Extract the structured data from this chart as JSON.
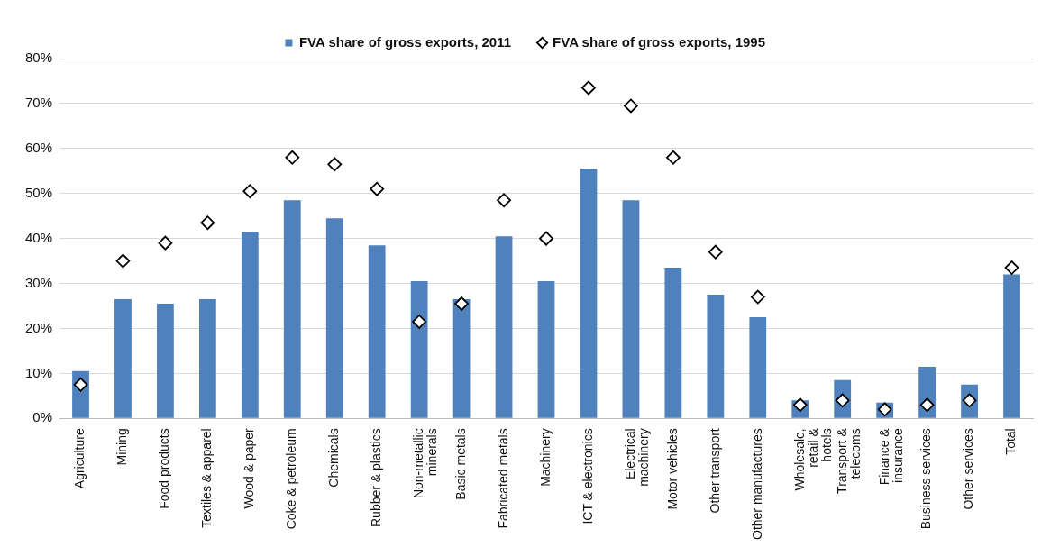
{
  "chart_data": {
    "type": "bar",
    "categories": [
      "Agriculture",
      "Mining",
      "Food products",
      "Textiles & apparel",
      "Wood & paper",
      "Coke & petroleum",
      "Chemicals",
      "Rubber & plastics",
      "Non-metallic minerals",
      "Basic metals",
      "Fabricated metals",
      "Machinery",
      "ICT & electronics",
      "Electrical machinery",
      "Motor vehicles",
      "Other transport",
      "Other manufactures",
      "Wholesale, retail & hotels",
      "Transport & telecoms",
      "Finance & insurance",
      "Business services",
      "Other services",
      "Total"
    ],
    "series": [
      {
        "name": "FVA share of gross exports, 2011",
        "color": "#4f81bd",
        "values": [
          10.5,
          26.5,
          25.5,
          26.5,
          41.5,
          48.5,
          44.5,
          38.5,
          30.5,
          26.5,
          40.5,
          30.5,
          55.5,
          48.5,
          33.5,
          27.5,
          22.5,
          4,
          8.5,
          3.5,
          11.5,
          7.5,
          32
        ]
      },
      {
        "name": "FVA share of gross exports, 1995",
        "type": "scatter",
        "color": "#000000",
        "marker": "diamond",
        "x": [
          "Agriculture",
          "Mining",
          "Food products",
          "Textiles & apparel",
          "Wood & paper",
          "Coke & petroleum",
          "Chemicals",
          "Rubber & plastics",
          "Non-metallic minerals",
          "Basic metals",
          "Fabricated metals",
          "Machinery",
          "ICT & electronics",
          "Electrical machinery",
          "Motor vehicles",
          "Other transport",
          "Other manufactures",
          "Wholesale, retail & hotels",
          "Transport & telecoms",
          "Finance & insurance",
          "Business services",
          "Other services",
          "Total"
        ],
        "values": [
          7.5,
          35,
          39,
          43.5,
          50.5,
          58,
          56.5,
          51,
          21.5,
          25.5,
          48.5,
          40,
          73.5,
          69.5,
          58,
          37,
          27,
          3,
          4,
          2,
          3,
          4,
          33.5
        ]
      }
    ],
    "ylim": [
      0,
      80
    ],
    "yticks": [
      {
        "value": 0,
        "label": "0%"
      },
      {
        "value": 10,
        "label": "10%"
      },
      {
        "value": 20,
        "label": "20%"
      },
      {
        "value": 30,
        "label": "30%"
      },
      {
        "value": 40,
        "label": "40%"
      },
      {
        "value": 50,
        "label": "50%"
      },
      {
        "value": 60,
        "label": "60%"
      },
      {
        "value": 70,
        "label": "70%"
      },
      {
        "value": 80,
        "label": "80%"
      }
    ],
    "grid": "y",
    "legend": "top"
  }
}
